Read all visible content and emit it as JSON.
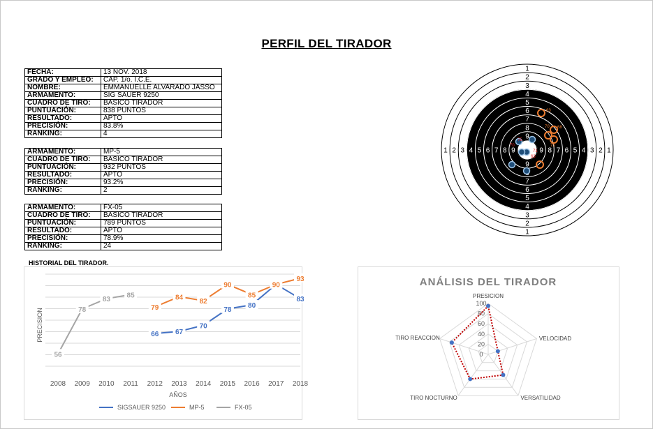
{
  "title": "PERFIL DEL TIRADOR",
  "profile_table": [
    {
      "label": "FECHA:",
      "value": "13 NOV. 2018"
    },
    {
      "label": "GRADO Y EMPLEO:",
      "value": "CAP. 1/o. I.C.E."
    },
    {
      "label": "NOMBRE:",
      "value": "EMMANUELLE ALVARADO JASSO"
    },
    {
      "label": "ARMAMENTO:",
      "value": "SIG SAUER 9250"
    },
    {
      "label": "CUADRO DE TIRO:",
      "value": "BASICO TIRADOR"
    },
    {
      "label": "PUNTUACIÓN:",
      "value": "838 PUNTOS"
    },
    {
      "label": "RESULTADO:",
      "value": "APTO"
    },
    {
      "label": "PRECISIÓN:",
      "value": "83.8%"
    },
    {
      "label": "RANKING:",
      "value": "4"
    }
  ],
  "mp5_table": [
    {
      "label": "ARMAMENTO:",
      "value": "MP-5"
    },
    {
      "label": "CUADRO DE TIRO:",
      "value": "BASICO TIRADOR"
    },
    {
      "label": "PUNTUACIÓN:",
      "value": "932 PUNTOS"
    },
    {
      "label": "RESULTADO:",
      "value": "APTO"
    },
    {
      "label": "PRECISIÓN:",
      "value": "93.2%"
    },
    {
      "label": "RANKING:",
      "value": "2"
    }
  ],
  "fx05_table": [
    {
      "label": "ARMAMENTO:",
      "value": "FX-05"
    },
    {
      "label": "CUADRO DE TIRO:",
      "value": "BASICO TIRADOR"
    },
    {
      "label": "PUNTUACIÓN:",
      "value": "789 PUNTOS"
    },
    {
      "label": "RESULTADO:",
      "value": "APTO"
    },
    {
      "label": "PRECISIÓN:",
      "value": "78.9%"
    },
    {
      "label": "RANKING:",
      "value": "24"
    }
  ],
  "history_label": "HISTORIAL DEL TIRADOR.",
  "target": {
    "ring_numbers": [
      "1",
      "2",
      "3",
      "4",
      "5",
      "6",
      "7",
      "8",
      "9"
    ],
    "shots_orange": [
      {
        "label": "63"
      },
      {
        "label": "68"
      },
      {
        "label": "75"
      },
      {
        "label": "70"
      }
    ],
    "shots_red_labels": [
      "70",
      "71",
      "75",
      "63"
    ]
  },
  "chart_data": [
    {
      "type": "line",
      "title": "",
      "xlabel": "AÑOS",
      "ylabel": "PRECISION",
      "categories": [
        "2008",
        "2009",
        "2010",
        "2011",
        "2012",
        "2013",
        "2014",
        "2015",
        "2016",
        "2017",
        "2018"
      ],
      "series": [
        {
          "name": "SIGSAUER 9250",
          "color": "#4472c4",
          "values": [
            null,
            null,
            null,
            null,
            66,
            67,
            70,
            78,
            80,
            90,
            83
          ]
        },
        {
          "name": "MP-5",
          "color": "#ed7d31",
          "values": [
            null,
            null,
            null,
            null,
            79,
            84,
            82,
            90,
            85,
            90,
            93
          ]
        },
        {
          "name": "FX-05",
          "color": "#a5a5a5",
          "values": [
            56,
            78,
            83,
            85,
            null,
            null,
            null,
            null,
            null,
            null,
            null
          ]
        }
      ],
      "ylim": [
        50,
        95
      ],
      "grid": true,
      "legend": "bottom"
    },
    {
      "type": "radar",
      "title": "ANÁLISIS DEL TIRADOR",
      "axes": [
        "PRESICION",
        "VELOCIDAD",
        "VERSATILIDAD",
        "TIRO NOCTURNO",
        "TIRO REACCION"
      ],
      "ticks": [
        "0",
        "20",
        "40",
        "60",
        "80",
        "100"
      ],
      "values": [
        95,
        20,
        50,
        60,
        75
      ],
      "rmax": 100,
      "series_color": "#4472c4",
      "line_color": "#c00000"
    }
  ]
}
